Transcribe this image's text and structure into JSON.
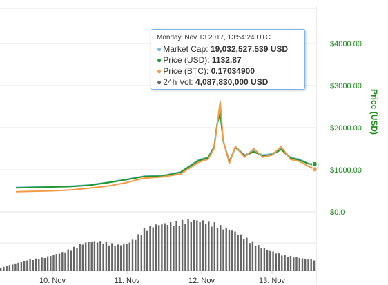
{
  "chart_data": {
    "type": "line",
    "ylabel": "Price (USD)",
    "ylim": [
      0,
      4000
    ],
    "y_ticks": [
      "$0.0",
      "$1000.00",
      "$2000.00",
      "$3000.00",
      "$4000.00"
    ],
    "x_ticks": [
      "10. Nov",
      "11. Nov",
      "12. Nov",
      "13. Nov"
    ],
    "grid": true,
    "x": [
      "Nov 9 12:00",
      "Nov 9 18:00",
      "Nov 10 00:00",
      "Nov 10 06:00",
      "Nov 10 12:00",
      "Nov 10 18:00",
      "Nov 11 00:00",
      "Nov 11 06:00",
      "Nov 11 12:00",
      "Nov 11 18:00",
      "Nov 12 00:00",
      "Nov 12 03:00",
      "Nov 12 05:00",
      "Nov 12 06:00",
      "Nov 12 07:00",
      "Nov 12 08:00",
      "Nov 12 10:00",
      "Nov 12 12:00",
      "Nov 12 15:00",
      "Nov 12 18:00",
      "Nov 12 21:00",
      "Nov 13 00:00",
      "Nov 13 03:00",
      "Nov 13 06:00",
      "Nov 13 09:00",
      "Nov 13 12:00",
      "Nov 13 14:00"
    ],
    "series": [
      {
        "name": "Market Cap",
        "color": "#7cb5ec",
        "values": [
          580,
          590,
          600,
          610,
          640,
          700,
          770,
          850,
          860,
          950,
          1240,
          1300,
          1550,
          2100,
          2380,
          1700,
          1200,
          1550,
          1350,
          1450,
          1350,
          1380,
          1500,
          1300,
          1250,
          1150,
          1100
        ]
      },
      {
        "name": "Price (USD)",
        "color": "#1f9a2e",
        "values": [
          570,
          580,
          590,
          600,
          630,
          690,
          760,
          840,
          850,
          940,
          1220,
          1280,
          1530,
          2080,
          2340,
          1680,
          1180,
          1530,
          1330,
          1430,
          1330,
          1360,
          1480,
          1280,
          1230,
          1140,
          1133
        ]
      },
      {
        "name": "Price (BTC)",
        "color": "#f49a42",
        "values": [
          480,
          490,
          500,
          520,
          560,
          610,
          690,
          800,
          830,
          900,
          1180,
          1250,
          1500,
          2050,
          2620,
          1700,
          1150,
          1550,
          1300,
          1500,
          1300,
          1350,
          1550,
          1250,
          1200,
          1080,
          1010
        ]
      }
    ],
    "volume": {
      "name": "24h Vol",
      "color": "#666666",
      "values": [
        0.05,
        0.1,
        0.15,
        0.2,
        0.22,
        0.25,
        0.3,
        0.35,
        0.42,
        0.5,
        0.55,
        0.55,
        0.52,
        0.48,
        0.5,
        0.6,
        0.78,
        0.85,
        0.88,
        0.9,
        0.92,
        0.95,
        0.95,
        0.92,
        0.88,
        0.8,
        0.75,
        0.65,
        0.55,
        0.45,
        0.38,
        0.32,
        0.28,
        0.25,
        0.22,
        0.2
      ]
    }
  },
  "tooltip": {
    "header": "Monday, Nov 13 2017, 13:54:24 UTC",
    "rows": [
      {
        "label": "Market Cap: ",
        "value": "19,032,527,539 USD",
        "color": "#7cb5ec"
      },
      {
        "label": "Price (USD): ",
        "value": "1132.87",
        "color": "#1f9a2e"
      },
      {
        "label": "Price (BTC): ",
        "value": "0.17034900",
        "color": "#f49a42"
      },
      {
        "label": "24h Vol: ",
        "value": "4,087,830,000 USD",
        "color": "#666666"
      }
    ]
  }
}
